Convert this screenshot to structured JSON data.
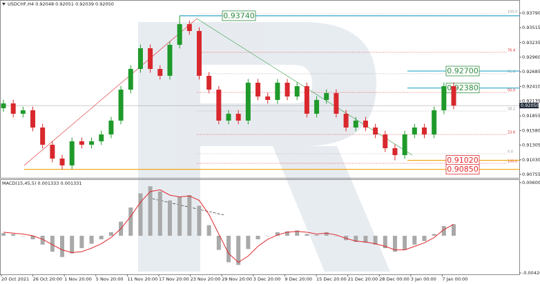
{
  "chart_data": [
    {
      "type": "candlestick",
      "title": "USDCHF,H4 0.92048 0.92051 0.92039 0.92050",
      "x_labels": [
        "20 Oct 2021",
        "26 Oct 20:00",
        "1 Nov 20:00",
        "5 Nov 20:00",
        "11 Nov 20:00",
        "17 Nov 20:00",
        "23 Nov 20:00",
        "29 Nov 20:00",
        "3 Dec 20:00",
        "9 Dec 20:00",
        "15 Dec 20:00",
        "21 Dec 20:00",
        "28 Dec 00:00",
        "3 Jan 00:00",
        "7 Jan 00:00"
      ],
      "open": [
        0.92,
        0.92091,
        0.91896,
        0.91961,
        0.91637,
        0.91313,
        0.91053,
        0.90924,
        0.91378,
        0.91313,
        0.91378,
        0.91507,
        0.91767,
        0.9235,
        0.92739,
        0.93129,
        0.92739,
        0.9261,
        0.93193,
        0.93582,
        0.93453,
        0.9261,
        0.9235,
        0.91767,
        0.91896,
        0.91767,
        0.9248,
        0.92221,
        0.92156,
        0.9248,
        0.92221,
        0.92415,
        0.91896,
        0.92156,
        0.92285,
        0.91896,
        0.91637,
        0.91767,
        0.91637,
        0.91507,
        0.91248,
        0.91118,
        0.91507,
        0.91637,
        0.91507,
        0.91961,
        0.92415
      ],
      "high": [
        0.92161,
        0.92161,
        0.92031,
        0.92031,
        0.91707,
        0.91383,
        0.91123,
        0.91448,
        0.91448,
        0.91448,
        0.91577,
        0.91837,
        0.9242,
        0.92809,
        0.93199,
        0.93199,
        0.92809,
        0.93263,
        0.9374,
        0.93652,
        0.93523,
        0.9268,
        0.9242,
        0.91966,
        0.91966,
        0.9255,
        0.9255,
        0.92291,
        0.9255,
        0.9255,
        0.92485,
        0.92485,
        0.92226,
        0.92355,
        0.92355,
        0.91966,
        0.91837,
        0.91837,
        0.91707,
        0.91577,
        0.91318,
        0.91577,
        0.91707,
        0.91707,
        0.92031,
        0.92485,
        0.92485
      ],
      "low": [
        0.9193,
        0.91826,
        0.91826,
        0.91567,
        0.91243,
        0.90983,
        0.9085,
        0.90854,
        0.91243,
        0.91243,
        0.91308,
        0.91437,
        0.91697,
        0.9228,
        0.92669,
        0.92669,
        0.9254,
        0.9254,
        0.93123,
        0.93383,
        0.9254,
        0.9228,
        0.91697,
        0.91697,
        0.91697,
        0.91697,
        0.92151,
        0.92086,
        0.92086,
        0.92151,
        0.92151,
        0.91826,
        0.91826,
        0.92086,
        0.91826,
        0.91567,
        0.91567,
        0.91567,
        0.91437,
        0.91178,
        0.9102,
        0.91048,
        0.91437,
        0.91437,
        0.91437,
        0.91891,
        0.9198
      ],
      "close": [
        0.92091,
        0.91896,
        0.91961,
        0.91637,
        0.91313,
        0.91053,
        0.90924,
        0.91378,
        0.91313,
        0.91378,
        0.91507,
        0.91767,
        0.9235,
        0.92739,
        0.93129,
        0.92739,
        0.9261,
        0.93193,
        0.93582,
        0.93453,
        0.9261,
        0.9235,
        0.91767,
        0.91896,
        0.91767,
        0.9248,
        0.92221,
        0.92156,
        0.9248,
        0.92221,
        0.92415,
        0.91896,
        0.92156,
        0.92285,
        0.91896,
        0.91637,
        0.91767,
        0.91637,
        0.91507,
        0.91248,
        0.91118,
        0.91507,
        0.91637,
        0.91507,
        0.91961,
        0.92415,
        0.9205
      ],
      "up_color": "#1f9a2a",
      "down_color": "#d8282d",
      "ylim": [
        0.90755,
        0.9379
      ],
      "yticks": [
        0.90755,
        {
          "value": 0.9103,
          "label": "0.91030"
        },
        0.91305,
        {
          "value": 0.9158,
          "label": "0.91580"
        },
        0.91855,
        0.92135,
        {
          "value": 0.9241,
          "label": "0.92410"
        },
        0.92685,
        {
          "value": 0.9296,
          "label": "0.92960"
        },
        0.93235,
        0.93515,
        {
          "value": 0.9379,
          "label": "0.93790"
        }
      ],
      "current_price": {
        "value": 0.9205,
        "label": "0.92050"
      },
      "annotations": [
        {
          "value": 0.9374,
          "label": "0.93740",
          "color": "#2e8b3e"
        },
        {
          "value": 0.927,
          "label": "0.92700",
          "color": "#2e8b3e"
        },
        {
          "value": 0.9238,
          "label": "0.92380",
          "color": "#2e8b3e"
        },
        {
          "value": 0.9102,
          "label": "0.91020",
          "color": "#e0262a"
        },
        {
          "value": 0.9085,
          "label": "0.90850",
          "color": "#e0262a"
        }
      ],
      "fib_levels": [
        {
          "label": "100.0",
          "value": 0.93777
        },
        {
          "label": "76.4",
          "value": 0.93051
        },
        {
          "label": "61.8",
          "value": 0.92649
        },
        {
          "label": "50.0",
          "value": 0.92298
        },
        {
          "label": "38.2",
          "value": 0.91948
        },
        {
          "label": "23.6",
          "value": 0.91507
        },
        {
          "label": "0.0",
          "value": 0.91144
        },
        {
          "label": "100.0",
          "value": 0.90963
        }
      ]
    },
    {
      "type": "macd",
      "title": "MACD(15,45,5) 0.001333 0.001331",
      "histogram": [
        0.0003,
        0.0002,
        0.0,
        -0.0004,
        -0.001,
        -0.0018,
        -0.0024,
        -0.002,
        -0.0014,
        -0.0009,
        -0.0004,
        0.0004,
        0.0016,
        0.0032,
        0.0048,
        0.0056,
        0.005,
        0.004,
        0.0044,
        0.0046,
        0.0034,
        0.0012,
        -0.0016,
        -0.003,
        -0.0033,
        -0.0015,
        -0.0004,
        0.0,
        0.0004,
        0.0005,
        0.0006,
        0.0002,
        0.0001,
        0.0004,
        0.0,
        -0.0005,
        -0.0007,
        -0.0008,
        -0.001,
        -0.0014,
        -0.0018,
        -0.0016,
        -0.001,
        -0.0006,
        0.0002,
        0.0011,
        0.0013
      ],
      "signal": [
        0.0004,
        0.0003,
        0.0002,
        0.0,
        -0.0004,
        -0.001,
        -0.0016,
        -0.0019,
        -0.0018,
        -0.0014,
        -0.0009,
        -0.0002,
        0.0008,
        0.0022,
        0.0038,
        0.005,
        0.0052,
        0.0046,
        0.0044,
        0.0045,
        0.004,
        0.0024,
        0.0002,
        -0.002,
        -0.003,
        -0.0023,
        -0.0012,
        -0.0004,
        0.0001,
        0.0004,
        0.0005,
        0.0004,
        0.0002,
        0.0003,
        0.0001,
        -0.0003,
        -0.0006,
        -0.0007,
        -0.0009,
        -0.0012,
        -0.0016,
        -0.0016,
        -0.0012,
        -0.0008,
        -0.0002,
        0.0007,
        0.0013
      ],
      "histogram_color": "#a9a9a9",
      "signal_color": "#e0262a",
      "ylim": [
        -0.004209,
        0.006008
      ],
      "yticks": [
        -0.004209,
        0.006008
      ]
    }
  ]
}
